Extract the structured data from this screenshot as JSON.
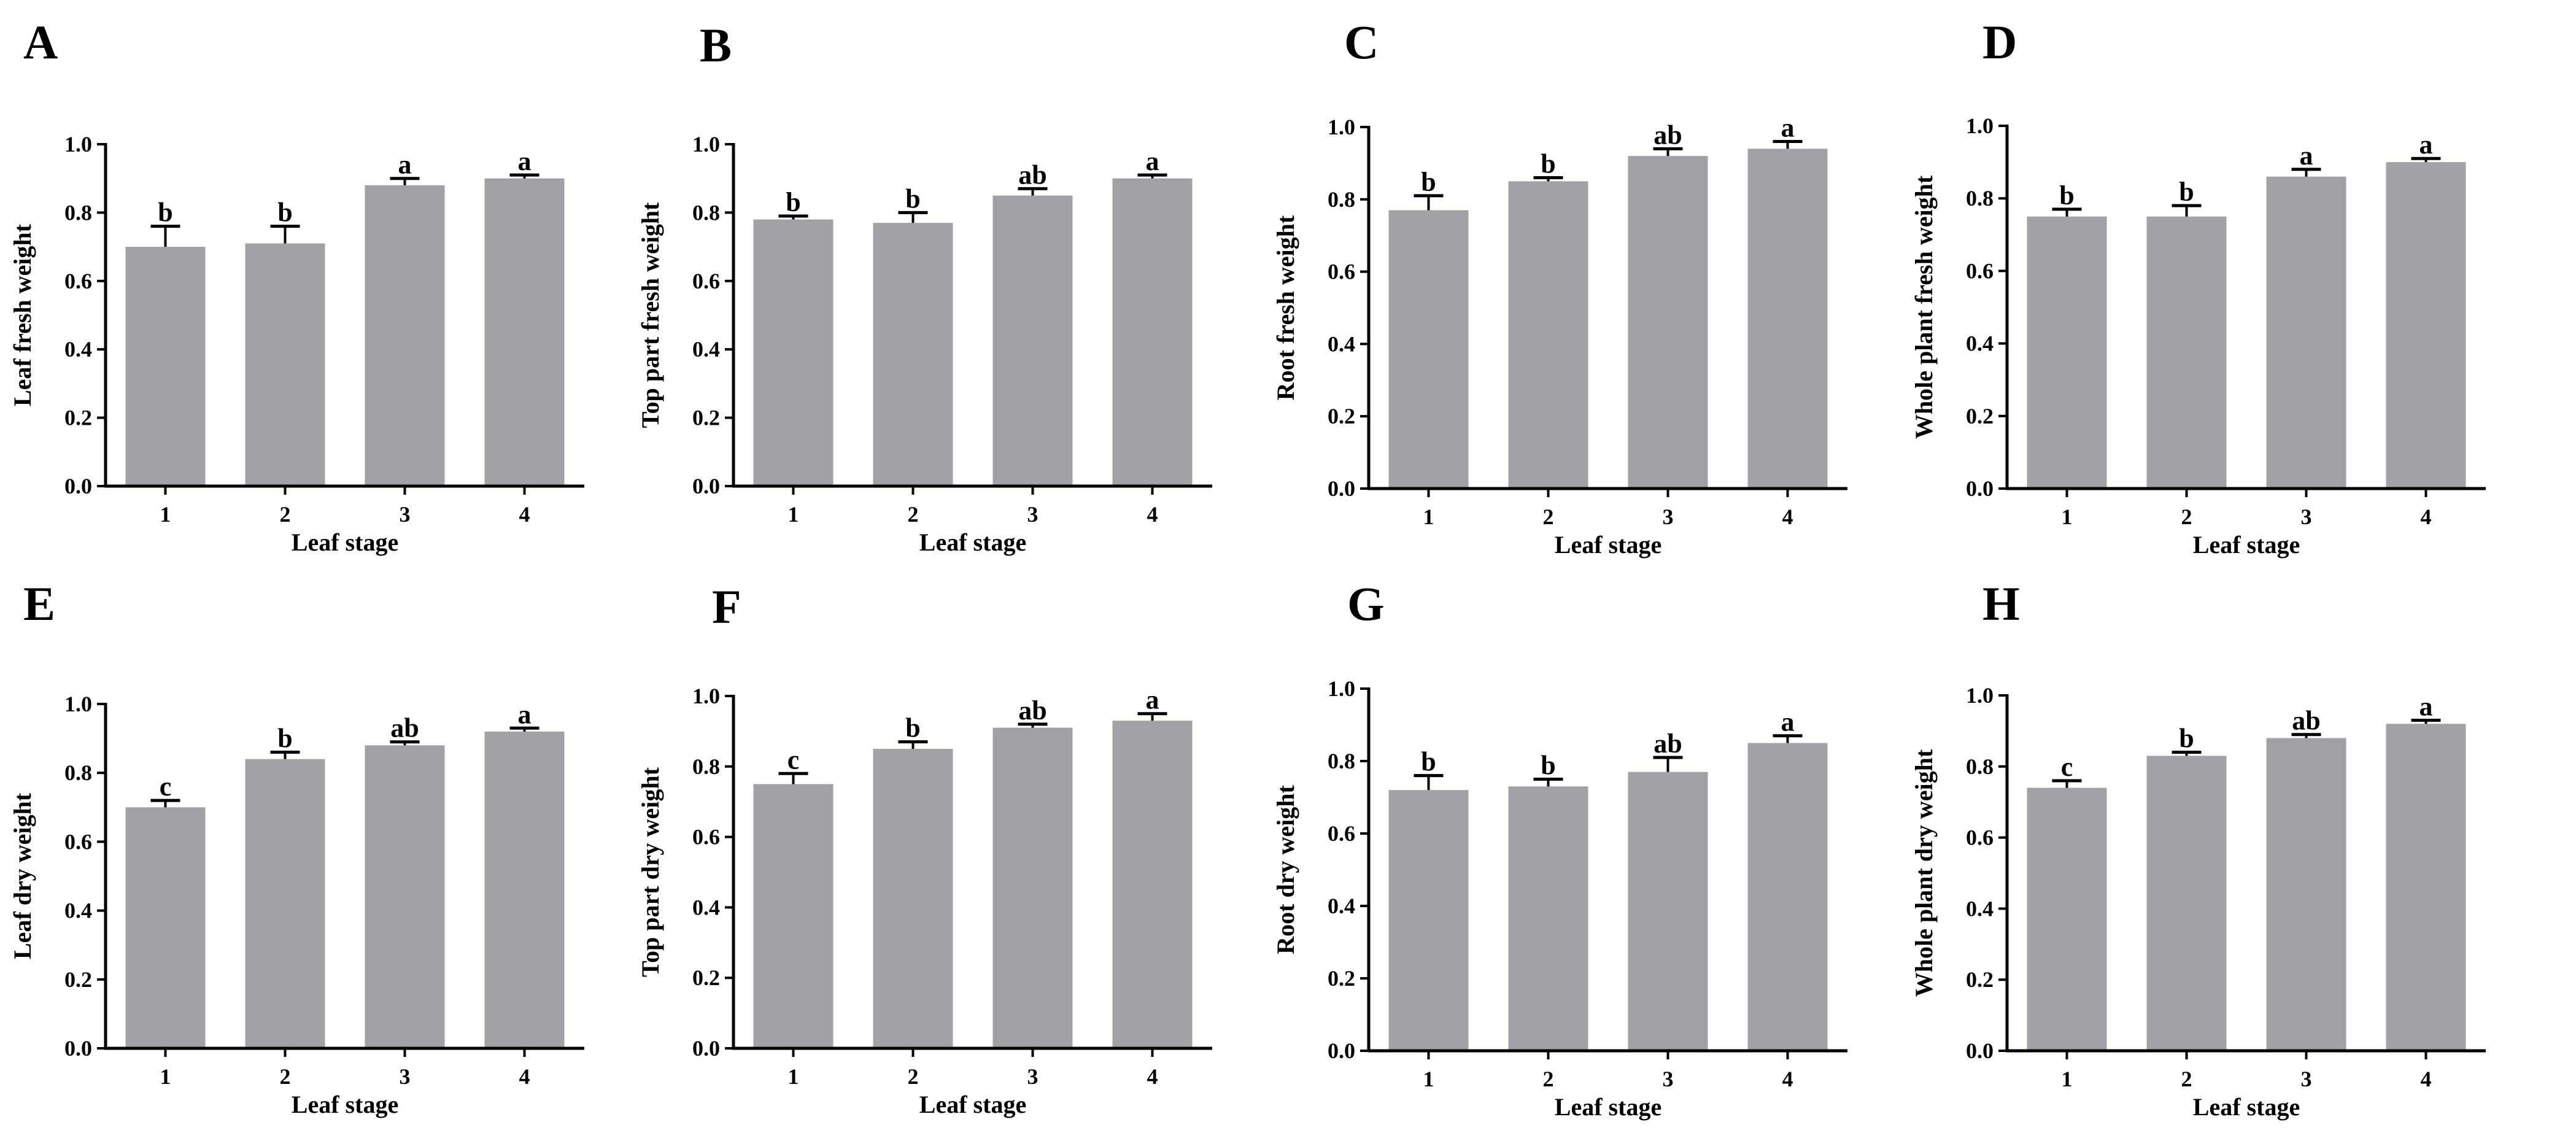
{
  "figure": {
    "bar_color": "#a2a2a6",
    "axis_color": "#000000"
  },
  "chart_data": [
    {
      "panel": "A",
      "type": "bar",
      "ylabel": "Leaf fresh weight",
      "xlabel": "Leaf stage",
      "categories": [
        "1",
        "2",
        "3",
        "4"
      ],
      "values": [
        0.7,
        0.71,
        0.88,
        0.9
      ],
      "errors": [
        0.06,
        0.05,
        0.02,
        0.01
      ],
      "significance": [
        "b",
        "b",
        "a",
        "a"
      ],
      "ylim": [
        0,
        1.0
      ],
      "yticks": [
        "0.0",
        "0.2",
        "0.4",
        "0.6",
        "0.8",
        "1.0"
      ]
    },
    {
      "panel": "B",
      "type": "bar",
      "ylabel": "Top part fresh weight",
      "xlabel": "Leaf stage",
      "categories": [
        "1",
        "2",
        "3",
        "4"
      ],
      "values": [
        0.78,
        0.77,
        0.85,
        0.9
      ],
      "errors": [
        0.01,
        0.03,
        0.02,
        0.01
      ],
      "significance": [
        "b",
        "b",
        "ab",
        "a"
      ],
      "ylim": [
        0,
        1.0
      ],
      "yticks": [
        "0.0",
        "0.2",
        "0.4",
        "0.6",
        "0.8",
        "1.0"
      ]
    },
    {
      "panel": "C",
      "type": "bar",
      "ylabel": "Root fresh weight",
      "xlabel": "Leaf stage",
      "categories": [
        "1",
        "2",
        "3",
        "4"
      ],
      "values": [
        0.77,
        0.85,
        0.92,
        0.94
      ],
      "errors": [
        0.04,
        0.01,
        0.02,
        0.02
      ],
      "significance": [
        "b",
        "b",
        "ab",
        "a"
      ],
      "ylim": [
        0,
        1.0
      ],
      "yticks": [
        "0.0",
        "0.2",
        "0.4",
        "0.6",
        "0.8",
        "1.0"
      ]
    },
    {
      "panel": "D",
      "type": "bar",
      "ylabel": "Whole plant fresh weight",
      "xlabel": "Leaf stage",
      "categories": [
        "1",
        "2",
        "3",
        "4"
      ],
      "values": [
        0.75,
        0.75,
        0.86,
        0.9
      ],
      "errors": [
        0.02,
        0.03,
        0.02,
        0.01
      ],
      "significance": [
        "b",
        "b",
        "a",
        "a"
      ],
      "ylim": [
        0,
        1.0
      ],
      "yticks": [
        "0.0",
        "0.2",
        "0.4",
        "0.6",
        "0.8",
        "1.0"
      ]
    },
    {
      "panel": "E",
      "type": "bar",
      "ylabel": "Leaf dry weight",
      "xlabel": "Leaf stage",
      "categories": [
        "1",
        "2",
        "3",
        "4"
      ],
      "values": [
        0.7,
        0.84,
        0.88,
        0.92
      ],
      "errors": [
        0.02,
        0.02,
        0.01,
        0.01
      ],
      "significance": [
        "c",
        "b",
        "ab",
        "a"
      ],
      "ylim": [
        0,
        1.0
      ],
      "yticks": [
        "0.0",
        "0.2",
        "0.4",
        "0.6",
        "0.8",
        "1.0"
      ]
    },
    {
      "panel": "F",
      "type": "bar",
      "ylabel": "Top part dry weight",
      "xlabel": "Leaf stage",
      "categories": [
        "1",
        "2",
        "3",
        "4"
      ],
      "values": [
        0.75,
        0.85,
        0.91,
        0.93
      ],
      "errors": [
        0.03,
        0.02,
        0.01,
        0.02
      ],
      "significance": [
        "c",
        "b",
        "ab",
        "a"
      ],
      "ylim": [
        0,
        1.0
      ],
      "yticks": [
        "0.0",
        "0.2",
        "0.4",
        "0.6",
        "0.8",
        "1.0"
      ]
    },
    {
      "panel": "G",
      "type": "bar",
      "ylabel": "Root dry weight",
      "xlabel": "Leaf stage",
      "categories": [
        "1",
        "2",
        "3",
        "4"
      ],
      "values": [
        0.72,
        0.73,
        0.77,
        0.85
      ],
      "errors": [
        0.04,
        0.02,
        0.04,
        0.02
      ],
      "significance": [
        "b",
        "b",
        "ab",
        "a"
      ],
      "ylim": [
        0,
        1.0
      ],
      "yticks": [
        "0.0",
        "0.2",
        "0.4",
        "0.6",
        "0.8",
        "1.0"
      ]
    },
    {
      "panel": "H",
      "type": "bar",
      "ylabel": "Whole plant dry weight",
      "xlabel": "Leaf stage",
      "categories": [
        "1",
        "2",
        "3",
        "4"
      ],
      "values": [
        0.74,
        0.83,
        0.88,
        0.92
      ],
      "errors": [
        0.02,
        0.01,
        0.01,
        0.01
      ],
      "significance": [
        "c",
        "b",
        "ab",
        "a"
      ],
      "ylim": [
        0,
        1.0
      ],
      "yticks": [
        "0.0",
        "0.2",
        "0.4",
        "0.6",
        "0.8",
        "1.0"
      ]
    }
  ]
}
